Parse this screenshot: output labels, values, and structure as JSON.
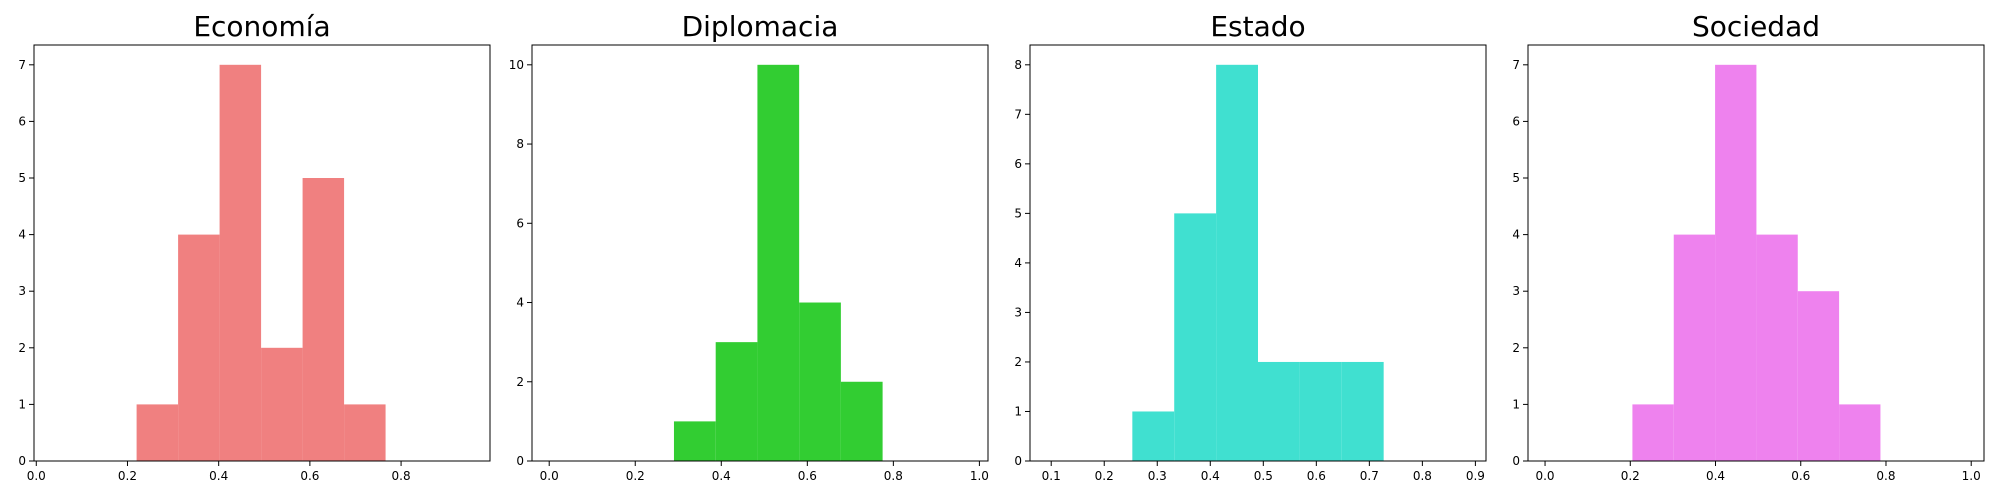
{
  "chart_data": [
    {
      "type": "bar",
      "title": "Economía",
      "color": "#f08080",
      "xlim": [
        -0.005,
        0.995
      ],
      "ylim": [
        0,
        7.35
      ],
      "xticks": [
        0.0,
        0.2,
        0.4,
        0.6,
        0.8
      ],
      "xtick_labels": [
        "0.0",
        "0.2",
        "0.4",
        "0.6",
        "0.8"
      ],
      "yticks": [
        0,
        1,
        2,
        3,
        4,
        5,
        6,
        7
      ],
      "ytick_labels": [
        "0",
        "1",
        "2",
        "3",
        "4",
        "5",
        "6",
        "7"
      ],
      "bins": [
        {
          "x0": 0.22,
          "x1": 0.311,
          "count": 1
        },
        {
          "x0": 0.311,
          "x1": 0.402,
          "count": 4
        },
        {
          "x0": 0.402,
          "x1": 0.493,
          "count": 7
        },
        {
          "x0": 0.493,
          "x1": 0.584,
          "count": 2
        },
        {
          "x0": 0.584,
          "x1": 0.675,
          "count": 5
        },
        {
          "x0": 0.675,
          "x1": 0.766,
          "count": 1
        }
      ]
    },
    {
      "type": "bar",
      "title": "Diplomacia",
      "color": "#32cd32",
      "xlim": [
        -0.04,
        1.02
      ],
      "ylim": [
        0,
        10.5
      ],
      "xticks": [
        0.0,
        0.2,
        0.4,
        0.6,
        0.8,
        1.0
      ],
      "xtick_labels": [
        "0.0",
        "0.2",
        "0.4",
        "0.6",
        "0.8",
        "1.0"
      ],
      "yticks": [
        0,
        2,
        4,
        6,
        8,
        10
      ],
      "ytick_labels": [
        "0",
        "2",
        "4",
        "6",
        "8",
        "10"
      ],
      "bins": [
        {
          "x0": 0.29,
          "x1": 0.387,
          "count": 1
        },
        {
          "x0": 0.387,
          "x1": 0.484,
          "count": 3
        },
        {
          "x0": 0.484,
          "x1": 0.581,
          "count": 10
        },
        {
          "x0": 0.581,
          "x1": 0.678,
          "count": 4
        },
        {
          "x0": 0.678,
          "x1": 0.775,
          "count": 2
        }
      ]
    },
    {
      "type": "bar",
      "title": "Estado",
      "color": "#40e0d0",
      "xlim": [
        0.06,
        0.92
      ],
      "ylim": [
        0,
        8.4
      ],
      "xticks": [
        0.1,
        0.2,
        0.3,
        0.4,
        0.5,
        0.6,
        0.7,
        0.8,
        0.9
      ],
      "xtick_labels": [
        "0.1",
        "0.2",
        "0.3",
        "0.4",
        "0.5",
        "0.6",
        "0.7",
        "0.8",
        "0.9"
      ],
      "yticks": [
        0,
        1,
        2,
        3,
        4,
        5,
        6,
        7,
        8
      ],
      "ytick_labels": [
        "0",
        "1",
        "2",
        "3",
        "4",
        "5",
        "6",
        "7",
        "8"
      ],
      "bins": [
        {
          "x0": 0.253,
          "x1": 0.332,
          "count": 1
        },
        {
          "x0": 0.332,
          "x1": 0.411,
          "count": 5
        },
        {
          "x0": 0.411,
          "x1": 0.49,
          "count": 8
        },
        {
          "x0": 0.49,
          "x1": 0.569,
          "count": 2
        },
        {
          "x0": 0.569,
          "x1": 0.648,
          "count": 2
        },
        {
          "x0": 0.648,
          "x1": 0.727,
          "count": 2
        }
      ]
    },
    {
      "type": "bar",
      "title": "Sociedad",
      "color": "#ee82ee",
      "xlim": [
        -0.04,
        1.03
      ],
      "ylim": [
        0,
        7.35
      ],
      "xticks": [
        0.0,
        0.2,
        0.4,
        0.6,
        0.8,
        1.0
      ],
      "xtick_labels": [
        "0.0",
        "0.2",
        "0.4",
        "0.6",
        "0.8",
        "1.0"
      ],
      "yticks": [
        0,
        1,
        2,
        3,
        4,
        5,
        6,
        7
      ],
      "ytick_labels": [
        "0",
        "1",
        "2",
        "3",
        "4",
        "5",
        "6",
        "7"
      ],
      "bins": [
        {
          "x0": 0.205,
          "x1": 0.302,
          "count": 1
        },
        {
          "x0": 0.302,
          "x1": 0.399,
          "count": 4
        },
        {
          "x0": 0.399,
          "x1": 0.496,
          "count": 7
        },
        {
          "x0": 0.496,
          "x1": 0.593,
          "count": 4
        },
        {
          "x0": 0.593,
          "x1": 0.69,
          "count": 3
        },
        {
          "x0": 0.69,
          "x1": 0.787,
          "count": 1
        }
      ]
    }
  ]
}
